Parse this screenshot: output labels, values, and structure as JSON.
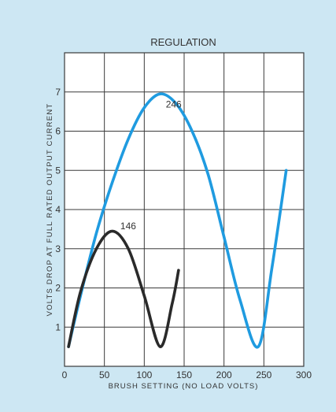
{
  "colors": {
    "background": "#cde7f3",
    "series_246": "#1f9be0",
    "series_146": "#2a2a2a",
    "grid": "#3a3a3a",
    "text": "#333333"
  },
  "chart_data": {
    "type": "line",
    "title": "REGULATION",
    "xlabel": "BRUSH SETTING (NO LOAD VOLTS)",
    "ylabel": "VOLTS DROP AT FULL RATED OUTPUT CURRENT",
    "xlim": [
      0,
      300
    ],
    "ylim": [
      0,
      8
    ],
    "xticks": [
      0,
      50,
      100,
      150,
      200,
      250,
      300
    ],
    "yticks": [
      1,
      2,
      3,
      4,
      5,
      6,
      7
    ],
    "grid": true,
    "series": [
      {
        "name": "246",
        "x": [
          5,
          20,
          40,
          60,
          80,
          100,
          120,
          140,
          160,
          180,
          200,
          220,
          243,
          260,
          278
        ],
        "y": [
          0.5,
          1.8,
          3.4,
          4.7,
          5.8,
          6.6,
          6.95,
          6.7,
          6.0,
          4.9,
          3.3,
          1.7,
          0.5,
          2.5,
          5.0
        ]
      },
      {
        "name": "146",
        "x": [
          5,
          20,
          40,
          60,
          80,
          100,
          120,
          135,
          143
        ],
        "y": [
          0.5,
          1.9,
          3.0,
          3.45,
          3.0,
          1.8,
          0.5,
          1.6,
          2.45
        ]
      }
    ]
  }
}
